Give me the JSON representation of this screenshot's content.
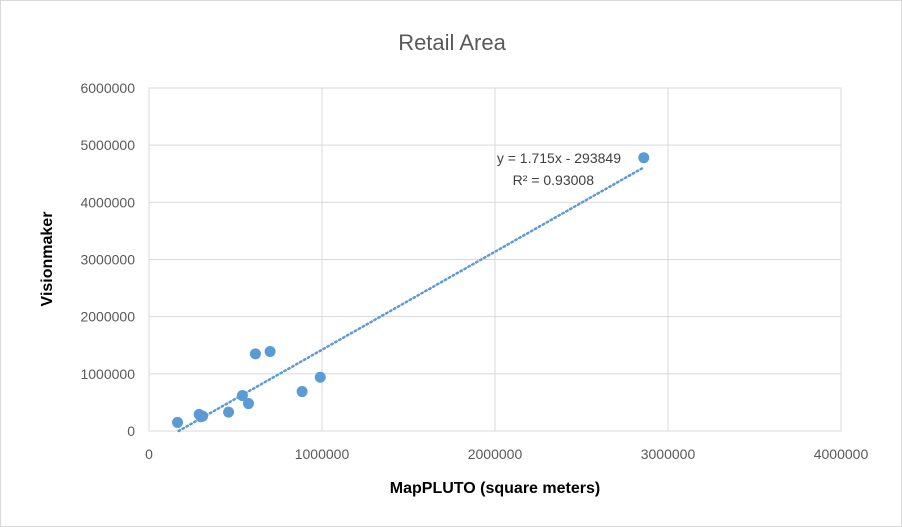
{
  "chart_data": {
    "type": "scatter",
    "title": "Retail Area",
    "xlabel": "MapPLUTO (square meters)",
    "ylabel": "Visionmaker",
    "xlim": [
      0,
      4000000
    ],
    "ylim": [
      0,
      6000000
    ],
    "x_ticks": [
      "0",
      "1000000",
      "2000000",
      "3000000",
      "4000000"
    ],
    "y_ticks": [
      "0",
      "1000000",
      "2000000",
      "3000000",
      "4000000",
      "5000000",
      "6000000"
    ],
    "grid": true,
    "legend": "none",
    "series": [
      {
        "color": "#5b9bd5",
        "points": [
          {
            "x": 165000,
            "y": 150000
          },
          {
            "x": 290000,
            "y": 290000
          },
          {
            "x": 300000,
            "y": 250000
          },
          {
            "x": 310000,
            "y": 260000
          },
          {
            "x": 460000,
            "y": 330000
          },
          {
            "x": 540000,
            "y": 620000
          },
          {
            "x": 575000,
            "y": 480000
          },
          {
            "x": 615000,
            "y": 1350000
          },
          {
            "x": 700000,
            "y": 1390000
          },
          {
            "x": 885000,
            "y": 690000
          },
          {
            "x": 990000,
            "y": 940000
          },
          {
            "x": 2860000,
            "y": 4780000
          }
        ]
      }
    ],
    "trendline": {
      "type": "linear",
      "slope": 1.715,
      "intercept": -293849,
      "x_start": 171341,
      "x_end": 2860000,
      "color": "#5b9bd5",
      "equation_label": "y = 1.715x - 293849",
      "r2_label": "R² = 0.93008"
    }
  }
}
